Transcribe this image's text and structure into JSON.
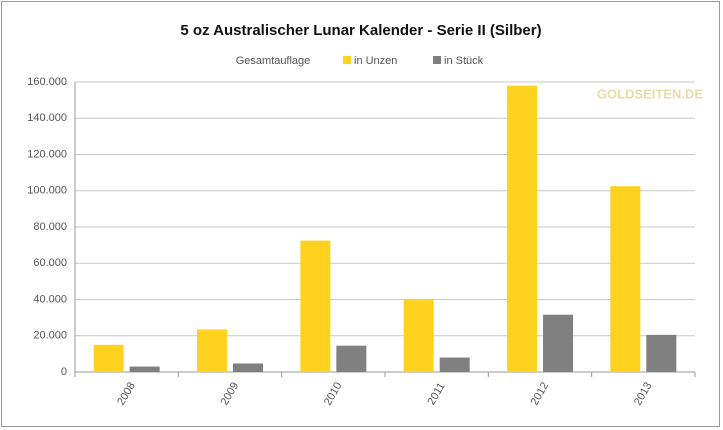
{
  "chart_data": {
    "type": "bar",
    "title": "5 oz Australischer Lunar Kalender - Serie II (Silber)",
    "legend_title": "Gesamtauflage",
    "watermark": "GOLDSEITEN.DE",
    "categories": [
      "2008",
      "2009",
      "2010",
      "2011",
      "2012",
      "2013"
    ],
    "series": [
      {
        "name": "in Unzen",
        "color": "#ffd21f",
        "values": [
          15000,
          23500,
          72500,
          40000,
          158000,
          102500
        ]
      },
      {
        "name": "in Stück",
        "color": "#808080",
        "values": [
          3000,
          4700,
          14500,
          8000,
          31600,
          20500
        ]
      }
    ],
    "ylim": [
      0,
      160000
    ],
    "yticks": [
      0,
      {
        "value": 20000,
        "label": "20.000"
      },
      {
        "value": 40000,
        "label": "40.000"
      },
      {
        "value": 60000,
        "label": "60.000"
      },
      {
        "value": 80000,
        "label": "80.000"
      },
      {
        "value": 100000,
        "label": "100.000"
      },
      {
        "value": 120000,
        "label": "120.000"
      },
      {
        "value": 140000,
        "label": "140.000"
      },
      {
        "value": 160000,
        "label": "160.000"
      }
    ],
    "grid": true
  }
}
